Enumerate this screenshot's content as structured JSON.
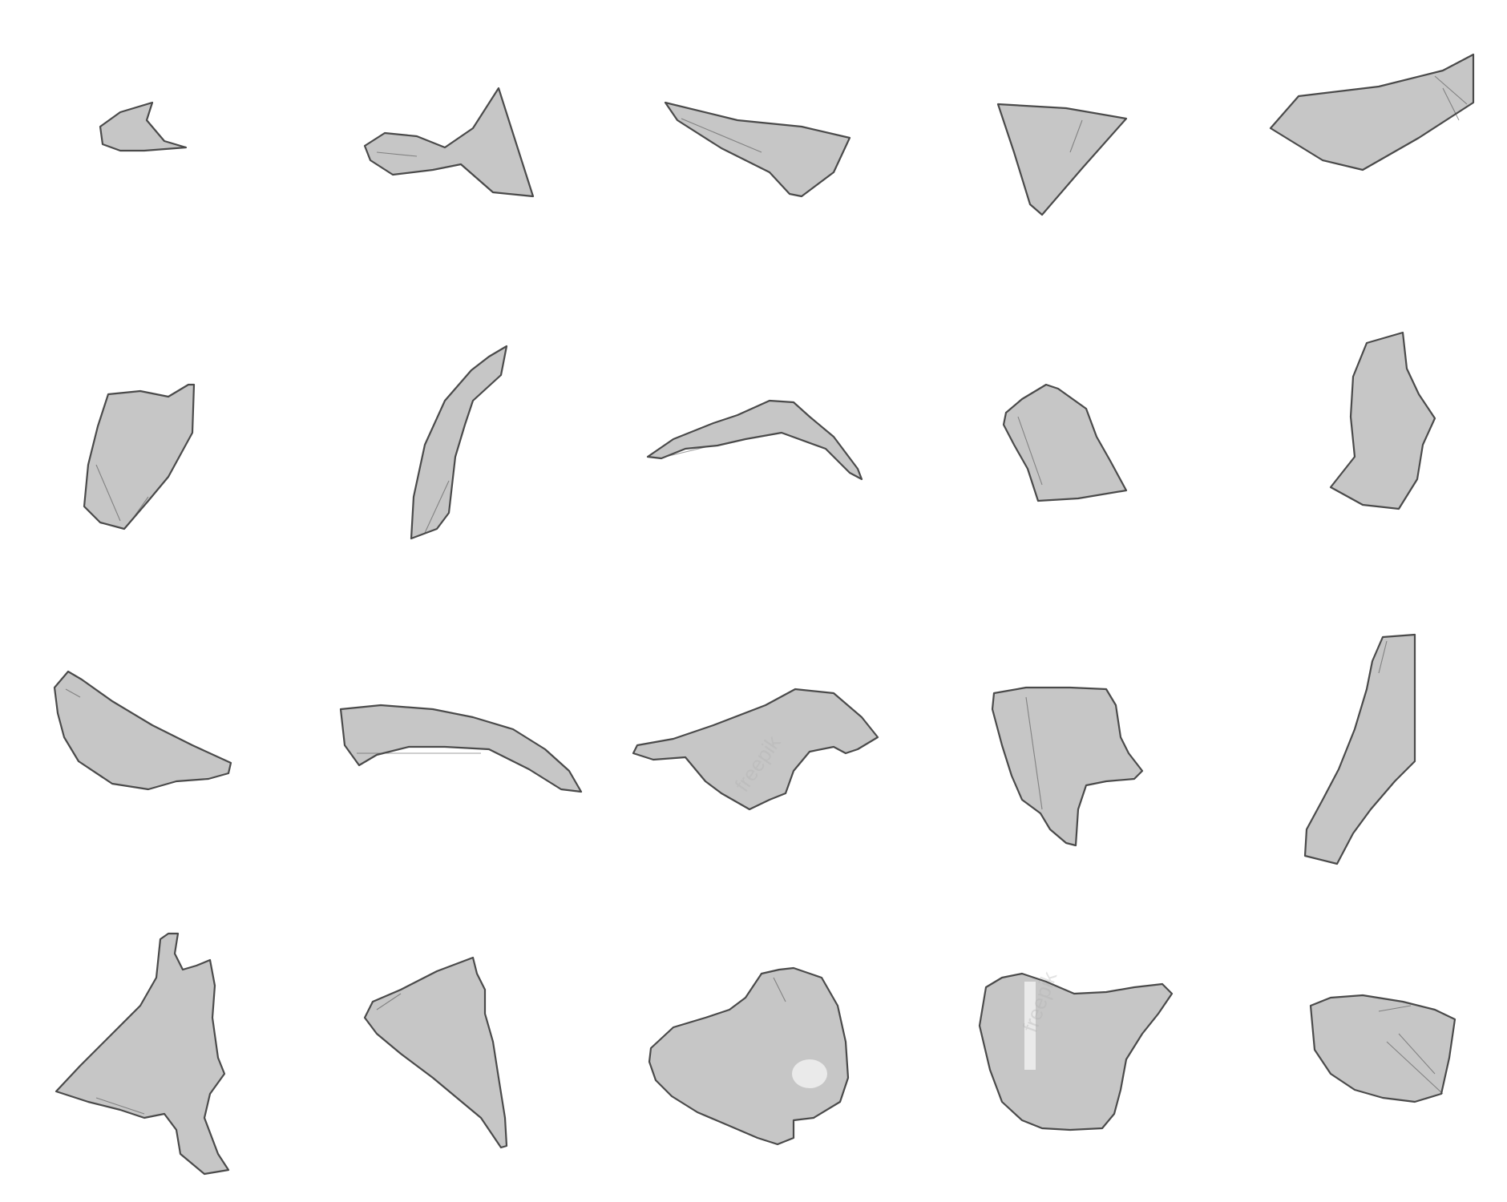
{
  "image": {
    "subject": "glass-shards",
    "background_color": "#ffffff",
    "colors": {
      "glass_fill": "#c6c6c6",
      "glass_edge": "#4a4a4a",
      "highlight": "#f3f3f3"
    },
    "grid": {
      "rows": 4,
      "columns": 5,
      "shard_count": 20
    },
    "watermark": "freepik"
  }
}
